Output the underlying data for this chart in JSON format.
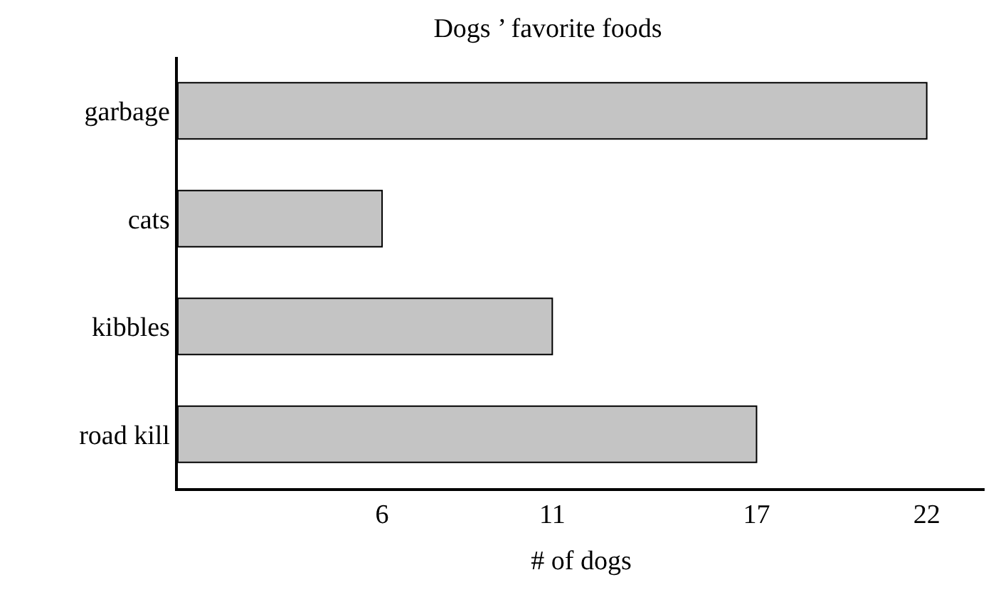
{
  "chart_data": {
    "type": "bar",
    "orientation": "horizontal",
    "title": "Dogs ’ favorite foods",
    "xlabel": "# of dogs",
    "categories": [
      "garbage",
      "cats",
      "kibbles",
      "road kill"
    ],
    "values": [
      22,
      6,
      11,
      17
    ],
    "color": "#c4c4c4",
    "xlim": [
      0,
      23.7
    ],
    "xticks": [
      6,
      11,
      17,
      22
    ]
  }
}
